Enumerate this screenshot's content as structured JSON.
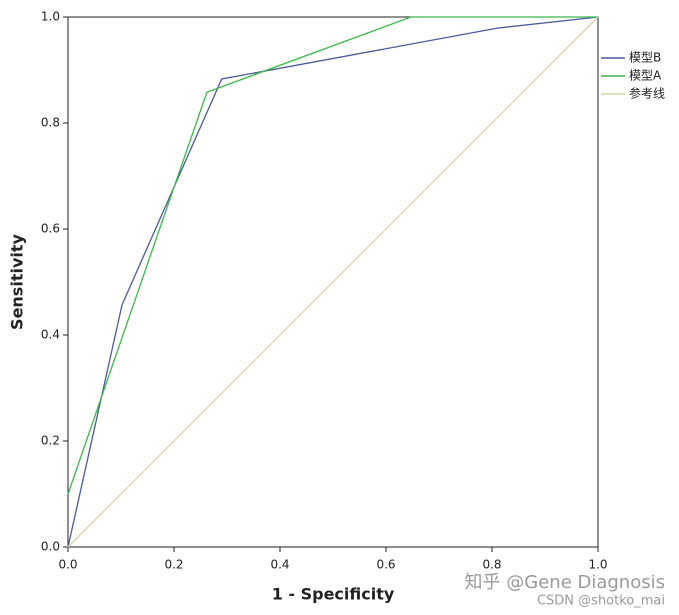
{
  "chart_data": {
    "type": "line",
    "xlabel": "1 - Specificity",
    "ylabel": "Sensitivity",
    "xlim": [
      0,
      1
    ],
    "ylim": [
      0,
      1
    ],
    "xticks": [
      {
        "value": 0,
        "label": "0.0"
      },
      0.2,
      0.4,
      0.6,
      0.8,
      {
        "value": 1,
        "label": "1.0"
      }
    ],
    "yticks": [
      {
        "value": 0,
        "label": "0.0"
      },
      0.2,
      0.4,
      0.6,
      0.8,
      {
        "value": 1,
        "label": "1.0"
      }
    ],
    "legend": "right",
    "series": [
      {
        "name": "模型B",
        "color": "#4a5a9c",
        "x": [
          0,
          0.102,
          0.29,
          0.81,
          1
        ],
        "values": [
          0,
          0.457,
          0.883,
          0.979,
          1
        ]
      },
      {
        "name": "模型A",
        "color": "#3cb84a",
        "x": [
          0,
          0.262,
          0.647,
          1
        ],
        "values": [
          0.1,
          0.858,
          1,
          1
        ]
      },
      {
        "name": "参考线",
        "color": "#d6d6a4",
        "x": [
          0,
          1
        ],
        "values": [
          0,
          1
        ]
      }
    ],
    "annotations": [
      "知乎 @Gene Diagnosis",
      "CSDN @shotko_mai"
    ]
  }
}
